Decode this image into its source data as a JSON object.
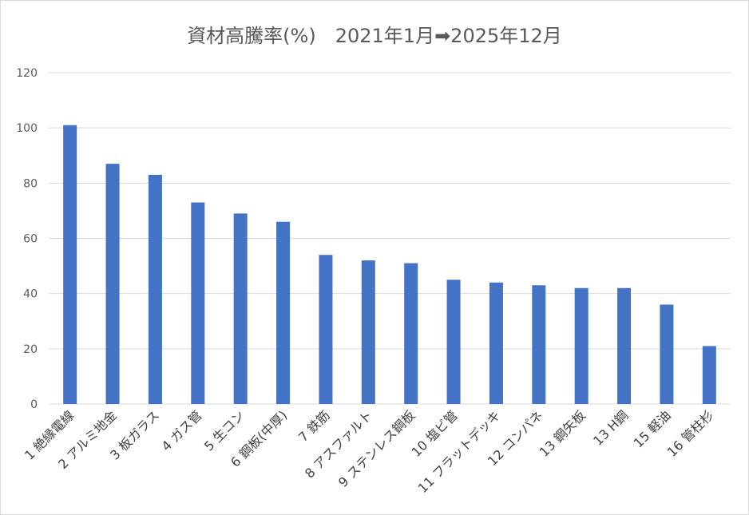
{
  "chart_data": {
    "type": "bar",
    "title": "資材高騰率(%)　2021年1月➡2025年12月",
    "categories": [
      "1 絶縁電線",
      "2 アルミ地金",
      "3 板ガラス",
      "4 ガス管",
      "5 生コン",
      "6 鋼板(中厚)",
      "7 鉄筋",
      "8 アスファルト",
      "9 ステンレス鋼板",
      "10 塩ビ管",
      "11 フラットデッキ",
      "12 コンパネ",
      "13 鋼矢板",
      "13 H鋼",
      "15 軽油",
      "16 管柱杉"
    ],
    "values": [
      101,
      87,
      83,
      73,
      69,
      66,
      54,
      52,
      51,
      45,
      44,
      43,
      42,
      42,
      36,
      21
    ],
    "ylim": [
      0,
      120
    ],
    "yticks": [
      0,
      20,
      40,
      60,
      80,
      100,
      120
    ],
    "grid": true,
    "bar_color": "#4472c4",
    "grid_color": "#d9d9d9"
  }
}
